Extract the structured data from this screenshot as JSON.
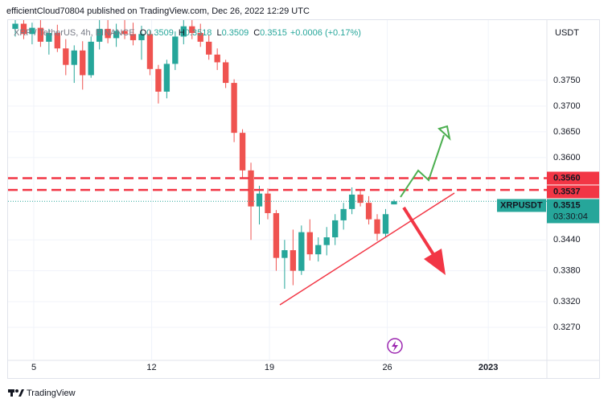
{
  "chart_data": {
    "type": "candlestick",
    "subtitle": "efficientCloud70804 published on TradingView.com, Dec 26, 2022 12:29 UTC",
    "title": "XRP / TetherUS, 4h, BINANCE",
    "ohlc_labels": [
      "O",
      "H",
      "L",
      "C"
    ],
    "change_label": "+0.0006 (+0.17%)",
    "y_axis_label": "USDT",
    "up_color": "#26a69a",
    "down_color": "#ef5350",
    "x": [
      3.9,
      4.4,
      4.9,
      5.4,
      5.9,
      6.4,
      6.9,
      7.4,
      7.9,
      8.4,
      8.9,
      9.4,
      9.9,
      10.4,
      10.9,
      11.4,
      11.9,
      12.4,
      12.9,
      13.4,
      13.9,
      14.4,
      14.9,
      15.4,
      15.9,
      16.4,
      16.9,
      17.4,
      17.9,
      18.4,
      18.9,
      19.4,
      19.9,
      20.4,
      20.9,
      21.4,
      21.9,
      22.4,
      22.9,
      23.4,
      23.9,
      24.4,
      24.9,
      25.4,
      25.9,
      26.4
    ],
    "open": [
      0.385,
      0.386,
      0.384,
      0.3852,
      0.3825,
      0.3842,
      0.3812,
      0.378,
      0.3808,
      0.376,
      0.3825,
      0.385,
      0.3832,
      0.3846,
      0.384,
      0.3828,
      0.384,
      0.3772,
      0.3728,
      0.3782,
      0.3835,
      0.3855,
      0.3842,
      0.3825,
      0.38,
      0.3785,
      0.3745,
      0.3648,
      0.3575,
      0.3505,
      0.353,
      0.3492,
      0.3405,
      0.342,
      0.338,
      0.3455,
      0.3412,
      0.343,
      0.3445,
      0.3478,
      0.35,
      0.3528,
      0.3512,
      0.348,
      0.3452,
      0.3509
    ],
    "high": [
      0.388,
      0.3875,
      0.3862,
      0.387,
      0.385,
      0.3858,
      0.383,
      0.3818,
      0.3826,
      0.3835,
      0.3868,
      0.3872,
      0.386,
      0.387,
      0.3862,
      0.3856,
      0.3848,
      0.378,
      0.379,
      0.3845,
      0.388,
      0.387,
      0.386,
      0.3838,
      0.3812,
      0.379,
      0.3752,
      0.3655,
      0.359,
      0.3545,
      0.354,
      0.3498,
      0.344,
      0.346,
      0.3468,
      0.348,
      0.3445,
      0.3465,
      0.349,
      0.3512,
      0.3542,
      0.3538,
      0.3525,
      0.349,
      0.35,
      0.3518
    ],
    "low": [
      0.3835,
      0.383,
      0.382,
      0.3815,
      0.38,
      0.3805,
      0.376,
      0.3745,
      0.3732,
      0.3755,
      0.381,
      0.3822,
      0.3815,
      0.383,
      0.3818,
      0.379,
      0.376,
      0.3705,
      0.3715,
      0.377,
      0.382,
      0.383,
      0.3815,
      0.379,
      0.377,
      0.3735,
      0.363,
      0.356,
      0.344,
      0.347,
      0.348,
      0.338,
      0.3345,
      0.3352,
      0.3372,
      0.34,
      0.3398,
      0.341,
      0.343,
      0.346,
      0.349,
      0.3505,
      0.347,
      0.3438,
      0.3445,
      0.3509
    ],
    "close": [
      0.386,
      0.384,
      0.3852,
      0.3825,
      0.3842,
      0.3812,
      0.378,
      0.3808,
      0.376,
      0.3825,
      0.385,
      0.3832,
      0.3846,
      0.384,
      0.3828,
      0.384,
      0.3772,
      0.3728,
      0.3782,
      0.3835,
      0.3855,
      0.3842,
      0.3825,
      0.38,
      0.3785,
      0.3745,
      0.3648,
      0.3575,
      0.3505,
      0.353,
      0.3492,
      0.3405,
      0.342,
      0.338,
      0.3455,
      0.3412,
      0.343,
      0.3445,
      0.3478,
      0.35,
      0.3528,
      0.3512,
      0.348,
      0.3452,
      0.349,
      0.3515
    ],
    "xlim": [
      3.47,
      35.48
    ],
    "xticks": [
      5,
      12,
      19,
      26,
      {
        "value": 32,
        "label": "2023"
      }
    ],
    "ylim": [
      0.3206,
      0.3867
    ],
    "yticks": [
      {
        "value": 0.327,
        "label": "0.3270"
      },
      {
        "value": 0.332,
        "label": "0.3320"
      },
      {
        "value": 0.338,
        "label": "0.3380"
      },
      {
        "value": 0.344,
        "label": "0.3440"
      },
      {
        "value": 0.36,
        "label": "0.3600"
      },
      {
        "value": 0.365,
        "label": "0.3650"
      },
      {
        "value": 0.37,
        "label": "0.3700"
      },
      {
        "value": 0.375,
        "label": "0.3750"
      }
    ],
    "levels": [
      {
        "value": 0.356,
        "label": "0.3560"
      },
      0.3537
    ],
    "level_color": "#f23645",
    "price_line": {
      "symbol": "XRPUSDT",
      "value": 0.3515,
      "countdown": "03:30:04",
      "color": "#26a69a"
    },
    "footer": "TradingView"
  }
}
